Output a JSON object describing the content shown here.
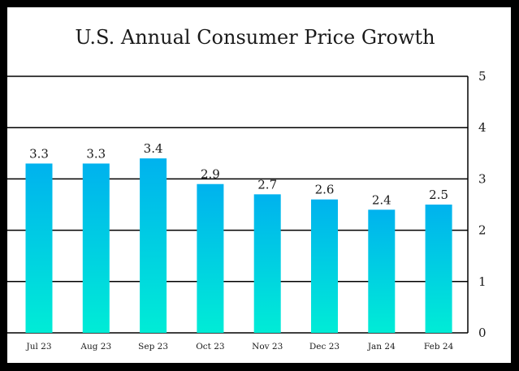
{
  "chart_data": {
    "type": "bar",
    "title": "U.S. Annual Consumer Price Growth",
    "categories": [
      "Jul 23",
      "Aug 23",
      "Sep 23",
      "Oct 23",
      "Nov 23",
      "Dec 23",
      "Jan 24",
      "Feb 24"
    ],
    "values": [
      3.3,
      3.3,
      3.4,
      2.9,
      2.7,
      2.6,
      2.4,
      2.5
    ],
    "data_labels": [
      "3.3",
      "3.3",
      "3.4",
      "2.9",
      "2.7",
      "2.6",
      "2.4",
      "2.5"
    ],
    "y_ticks": [
      "0",
      "1",
      "2",
      "3",
      "4",
      "5"
    ],
    "ylim": [
      0,
      5
    ],
    "y_axis_side": "right",
    "grid": true,
    "bar_gradient": {
      "top": "#00b2ee",
      "bottom": "#00ecd6"
    }
  }
}
